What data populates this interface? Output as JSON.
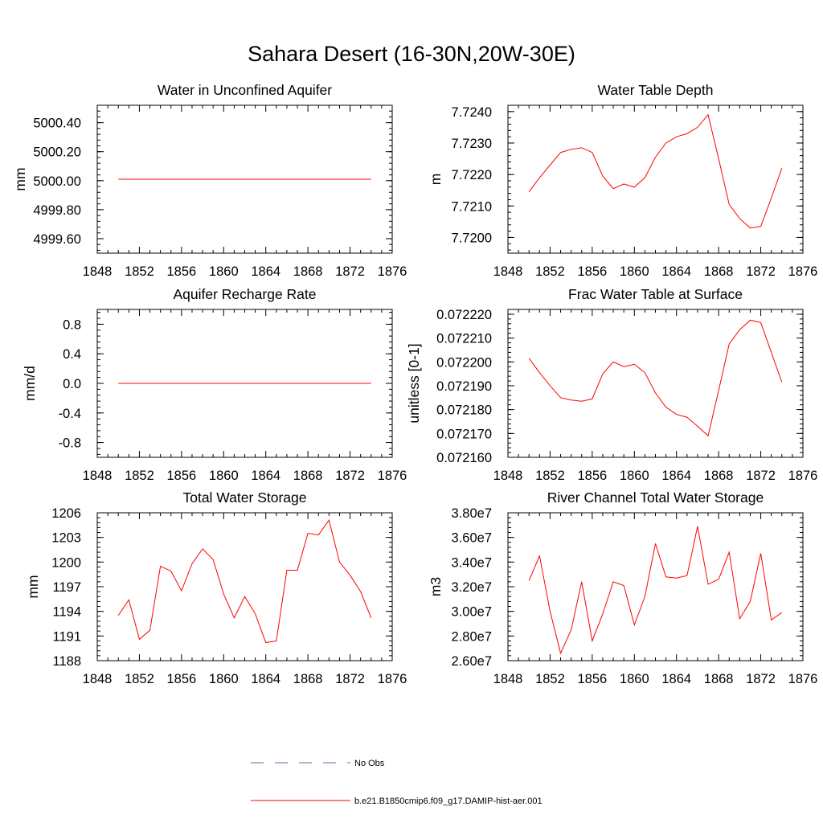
{
  "title": "Sahara Desert (16-30N,20W-30E)",
  "colors": {
    "model": "#ff0000",
    "obs": "#6666aa",
    "axis": "#000000"
  },
  "legend": [
    {
      "label": "No Obs",
      "style": "dashed",
      "color": "#6666aa"
    },
    {
      "label": "b.e21.B1850cmip6.f09_g17.DAMIP-hist-aer.001",
      "style": "solid",
      "color": "#ff0000"
    }
  ],
  "chart_data": [
    {
      "type": "line",
      "title": "Water in Unconfined Aquifer",
      "ylabel": "mm",
      "xlim": [
        1848,
        1876
      ],
      "ylim": [
        4999.5,
        5000.52
      ],
      "xticks": [
        1848,
        1852,
        1856,
        1860,
        1864,
        1868,
        1872,
        1876
      ],
      "xtick_labels": [
        "1848",
        "1852",
        "1856",
        "1860",
        "1864",
        "1868",
        "1872",
        "1876"
      ],
      "yticks": [
        4999.6,
        4999.8,
        5000.0,
        5000.2,
        5000.4
      ],
      "ytick_labels": [
        "4999.60",
        "4999.80",
        "5000.00",
        "5000.20",
        "5000.40"
      ],
      "series": [
        {
          "x": [
            1850,
            1851,
            1852,
            1853,
            1854,
            1855,
            1856,
            1857,
            1858,
            1859,
            1860,
            1861,
            1862,
            1863,
            1864,
            1865,
            1866,
            1867,
            1868,
            1869,
            1870,
            1871,
            1872,
            1873,
            1874
          ],
          "values": [
            5000.01,
            5000.01,
            5000.01,
            5000.01,
            5000.01,
            5000.01,
            5000.01,
            5000.01,
            5000.01,
            5000.01,
            5000.01,
            5000.01,
            5000.01,
            5000.01,
            5000.01,
            5000.01,
            5000.01,
            5000.01,
            5000.01,
            5000.01,
            5000.01,
            5000.01,
            5000.01,
            5000.01,
            5000.01
          ]
        }
      ]
    },
    {
      "type": "line",
      "title": "Water Table Depth",
      "ylabel": "m",
      "xlim": [
        1848,
        1876
      ],
      "ylim": [
        7.7195,
        7.7242
      ],
      "xticks": [
        1848,
        1852,
        1856,
        1860,
        1864,
        1868,
        1872,
        1876
      ],
      "xtick_labels": [
        "1848",
        "1852",
        "1856",
        "1860",
        "1864",
        "1868",
        "1872",
        "1876"
      ],
      "yticks": [
        7.72,
        7.721,
        7.722,
        7.723,
        7.724
      ],
      "ytick_labels": [
        "7.7200",
        "7.7210",
        "7.7220",
        "7.7230",
        "7.7240"
      ],
      "series": [
        {
          "x": [
            1850,
            1851,
            1852,
            1853,
            1854,
            1855,
            1856,
            1857,
            1858,
            1859,
            1860,
            1861,
            1862,
            1863,
            1864,
            1865,
            1866,
            1867,
            1868,
            1869,
            1870,
            1871,
            1872,
            1873,
            1874
          ],
          "values": [
            7.72145,
            7.7219,
            7.7223,
            7.7227,
            7.7228,
            7.72285,
            7.7227,
            7.72195,
            7.72155,
            7.7217,
            7.7216,
            7.7219,
            7.72255,
            7.723,
            7.7232,
            7.7233,
            7.7235,
            7.7239,
            7.7225,
            7.72105,
            7.7206,
            7.7203,
            7.72035,
            7.72125,
            7.7222
          ]
        }
      ]
    },
    {
      "type": "line",
      "title": "Aquifer Recharge Rate",
      "ylabel": "mm/d",
      "xlim": [
        1848,
        1876
      ],
      "ylim": [
        -1.0,
        1.0
      ],
      "xticks": [
        1848,
        1852,
        1856,
        1860,
        1864,
        1868,
        1872,
        1876
      ],
      "xtick_labels": [
        "1848",
        "1852",
        "1856",
        "1860",
        "1864",
        "1868",
        "1872",
        "1876"
      ],
      "yticks": [
        -0.8,
        -0.4,
        0.0,
        0.4,
        0.8
      ],
      "ytick_labels": [
        "-0.8",
        "-0.4",
        "0.0",
        "0.4",
        "0.8"
      ],
      "series": [
        {
          "x": [
            1850,
            1851,
            1852,
            1853,
            1854,
            1855,
            1856,
            1857,
            1858,
            1859,
            1860,
            1861,
            1862,
            1863,
            1864,
            1865,
            1866,
            1867,
            1868,
            1869,
            1870,
            1871,
            1872,
            1873,
            1874
          ],
          "values": [
            0,
            0,
            0,
            0,
            0,
            0,
            0,
            0,
            0,
            0,
            0,
            0,
            0,
            0,
            0,
            0,
            0,
            0,
            0,
            0,
            0,
            0,
            0,
            0,
            0
          ]
        }
      ]
    },
    {
      "type": "line",
      "title": "Frac Water Table at Surface",
      "ylabel": "unitless [0-1]",
      "xlim": [
        1848,
        1876
      ],
      "ylim": [
        0.07216,
        0.072222
      ],
      "xticks": [
        1848,
        1852,
        1856,
        1860,
        1864,
        1868,
        1872,
        1876
      ],
      "xtick_labels": [
        "1848",
        "1852",
        "1856",
        "1860",
        "1864",
        "1868",
        "1872",
        "1876"
      ],
      "yticks": [
        0.07216,
        0.07217,
        0.07218,
        0.07219,
        0.0722,
        0.07221,
        0.07222
      ],
      "ytick_labels": [
        "0.072160",
        "0.072170",
        "0.072180",
        "0.072190",
        "0.072200",
        "0.072210",
        "0.072220"
      ],
      "series": [
        {
          "x": [
            1850,
            1851,
            1852,
            1853,
            1854,
            1855,
            1856,
            1857,
            1858,
            1859,
            1860,
            1861,
            1862,
            1863,
            1864,
            1865,
            1866,
            1867,
            1868,
            1869,
            1870,
            1871,
            1872,
            1873,
            1874
          ],
          "values": [
            0.0722015,
            0.0721955,
            0.07219,
            0.072185,
            0.072184,
            0.0721835,
            0.0721845,
            0.072195,
            0.0722,
            0.072198,
            0.072199,
            0.0721955,
            0.072187,
            0.072181,
            0.072178,
            0.0721768,
            0.072173,
            0.072169,
            0.072188,
            0.0722075,
            0.0722135,
            0.0722175,
            0.0722165,
            0.072204,
            0.0721915
          ]
        }
      ]
    },
    {
      "type": "line",
      "title": "Total Water Storage",
      "ylabel": "mm",
      "xlim": [
        1848,
        1876
      ],
      "ylim": [
        1188,
        1206
      ],
      "xticks": [
        1848,
        1852,
        1856,
        1860,
        1864,
        1868,
        1872,
        1876
      ],
      "xtick_labels": [
        "1848",
        "1852",
        "1856",
        "1860",
        "1864",
        "1868",
        "1872",
        "1876"
      ],
      "yticks": [
        1188,
        1191,
        1194,
        1197,
        1200,
        1203,
        1206
      ],
      "ytick_labels": [
        "1188",
        "1191",
        "1194",
        "1197",
        "1200",
        "1203",
        "1206"
      ],
      "series": [
        {
          "x": [
            1850,
            1851,
            1852,
            1853,
            1854,
            1855,
            1856,
            1857,
            1858,
            1859,
            1860,
            1861,
            1862,
            1863,
            1864,
            1865,
            1866,
            1867,
            1868,
            1869,
            1870,
            1871,
            1872,
            1873,
            1874
          ],
          "values": [
            1193.5,
            1195.4,
            1190.6,
            1191.7,
            1199.5,
            1198.9,
            1196.5,
            1199.8,
            1201.6,
            1200.3,
            1196.1,
            1193.2,
            1195.8,
            1193.7,
            1190.2,
            1190.4,
            1199.0,
            1199.0,
            1203.5,
            1203.3,
            1205.1,
            1200.0,
            1198.4,
            1196.4,
            1193.2
          ]
        }
      ]
    },
    {
      "type": "line",
      "title": "River Channel Total Water Storage",
      "ylabel": "m3",
      "xlim": [
        1848,
        1876
      ],
      "ylim": [
        26000000,
        38000000
      ],
      "xticks": [
        1848,
        1852,
        1856,
        1860,
        1864,
        1868,
        1872,
        1876
      ],
      "xtick_labels": [
        "1848",
        "1852",
        "1856",
        "1860",
        "1864",
        "1868",
        "1872",
        "1876"
      ],
      "yticks": [
        26000000,
        28000000,
        30000000,
        32000000,
        34000000,
        36000000,
        38000000
      ],
      "ytick_labels": [
        "2.60e7",
        "2.80e7",
        "3.00e7",
        "3.20e7",
        "3.40e7",
        "3.60e7",
        "3.80e7"
      ],
      "series": [
        {
          "x": [
            1850,
            1851,
            1852,
            1853,
            1854,
            1855,
            1856,
            1857,
            1858,
            1859,
            1860,
            1861,
            1862,
            1863,
            1864,
            1865,
            1866,
            1867,
            1868,
            1869,
            1870,
            1871,
            1872,
            1873,
            1874
          ],
          "values": [
            32500000,
            34500000,
            30000000,
            26600000,
            28500000,
            32400000,
            27600000,
            29800000,
            32400000,
            32100000,
            28900000,
            31200000,
            35500000,
            32800000,
            32700000,
            32900000,
            36900000,
            32200000,
            32600000,
            34800000,
            29400000,
            30800000,
            34700000,
            29300000,
            29900000
          ]
        }
      ]
    }
  ]
}
